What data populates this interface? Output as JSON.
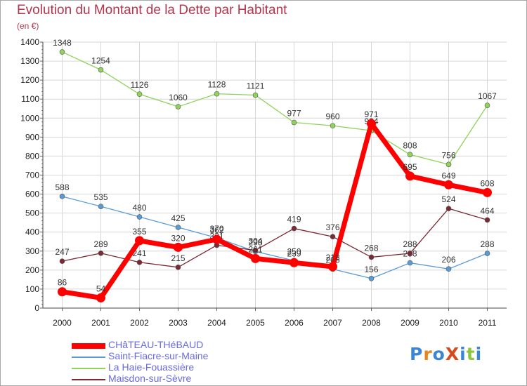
{
  "header": {
    "title": "Evolution du Montant de la Dette par Habitant",
    "subtitle": "(en €)"
  },
  "logo": {
    "text": "ProXiti"
  },
  "chart_data": {
    "type": "line",
    "x": [
      "2000",
      "2001",
      "2002",
      "2003",
      "2004",
      "2005",
      "2006",
      "2007",
      "2008",
      "2009",
      "2010",
      "2011"
    ],
    "ylim": [
      0,
      1400
    ],
    "yticks": [
      0,
      100,
      200,
      300,
      400,
      500,
      600,
      700,
      800,
      900,
      1000,
      1100,
      1200,
      1300,
      1400
    ],
    "grid": true,
    "legend": "bottom",
    "series": [
      {
        "name": "CHâTEAU-THéBAUD",
        "color": "#ff0000",
        "values": [
          86,
          54,
          355,
          320,
          362,
          261,
          239,
          218,
          971,
          695,
          649,
          608
        ]
      },
      {
        "name": "Saint-Fiacre-sur-Maine",
        "color": "#5b9bd5",
        "values": [
          588,
          535,
          480,
          425,
          370,
          298,
          250,
          205,
          156,
          238,
          206,
          288
        ]
      },
      {
        "name": "La Haie-Fouassière",
        "color": "#8fd35a",
        "values": [
          1348,
          1254,
          1126,
          1060,
          1128,
          1121,
          977,
          960,
          934,
          808,
          756,
          1067
        ]
      },
      {
        "name": "Maisdon-sur-Sèvre",
        "color": "#7b2a32",
        "values": [
          247,
          289,
          241,
          215,
          331,
          304,
          419,
          376,
          268,
          288,
          524,
          464
        ]
      }
    ]
  }
}
